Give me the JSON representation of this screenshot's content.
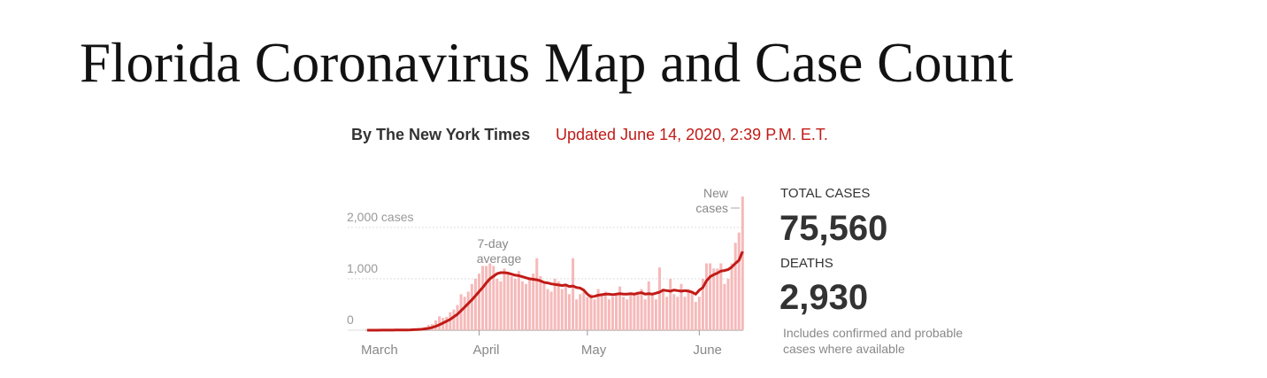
{
  "header": {
    "title": "Florida Coronavirus Map and Case Count",
    "byline": "By The New York Times",
    "updated": "Updated June 14, 2020, 2:39 P.M. E.T."
  },
  "chart_data": {
    "type": "bar",
    "categories": [
      "March",
      null,
      null,
      null,
      null,
      null,
      null,
      null,
      null,
      null,
      null,
      null,
      null,
      null,
      null,
      null,
      null,
      null,
      null,
      null,
      null,
      null,
      null,
      null,
      null,
      null,
      null,
      null,
      null,
      null,
      null,
      "April",
      null,
      null,
      null,
      null,
      null,
      null,
      null,
      null,
      null,
      null,
      null,
      null,
      null,
      null,
      null,
      null,
      null,
      null,
      null,
      null,
      null,
      null,
      null,
      null,
      null,
      null,
      null,
      null,
      null,
      "May",
      null,
      null,
      null,
      null,
      null,
      null,
      null,
      null,
      null,
      null,
      null,
      null,
      null,
      null,
      null,
      null,
      null,
      null,
      null,
      null,
      null,
      null,
      null,
      null,
      null,
      null,
      null,
      null,
      null,
      null,
      "June",
      null,
      null,
      null,
      null,
      null,
      null,
      null,
      null,
      null,
      null,
      null,
      null
    ],
    "series": [
      {
        "color": "#f6b9b9",
        "values": [
          0,
          0,
          1,
          1,
          2,
          2,
          3,
          4,
          4,
          5,
          7,
          10,
          15,
          20,
          25,
          40,
          60,
          100,
          120,
          190,
          270,
          240,
          260,
          350,
          400,
          490,
          700,
          650,
          750,
          900,
          1000,
          1100,
          1250,
          1250,
          1300,
          1250,
          1000,
          950,
          1200,
          1100,
          1050,
          1000,
          1150,
          950,
          900,
          1000,
          1100,
          1400,
          1050,
          900,
          800,
          750,
          1000,
          950,
          800,
          900,
          700,
          1400,
          600,
          700,
          750,
          650,
          700,
          600,
          800,
          700,
          750,
          600,
          650,
          700,
          850,
          650,
          600,
          700,
          700,
          750,
          800,
          600,
          950,
          700,
          600,
          1220,
          800,
          650,
          1000,
          700,
          650,
          900,
          650,
          800,
          750,
          550,
          650,
          1000,
          1300,
          1300,
          1200,
          1200,
          1300,
          900,
          1000,
          1300,
          1700,
          1900,
          2600
        ]
      },
      {
        "type": "line",
        "color": "#c11b17",
        "values": [
          0,
          0,
          0,
          0,
          1,
          1,
          2,
          2,
          3,
          3,
          4,
          5,
          7,
          10,
          13,
          18,
          25,
          37,
          53,
          75,
          105,
          140,
          175,
          210,
          260,
          310,
          380,
          450,
          520,
          590,
          670,
          750,
          830,
          920,
          1000,
          1050,
          1100,
          1120,
          1120,
          1110,
          1090,
          1070,
          1060,
          1040,
          1020,
          1000,
          990,
          980,
          960,
          930,
          920,
          900,
          890,
          880,
          870,
          880,
          850,
          860,
          830,
          820,
          780,
          700,
          650,
          660,
          680,
          690,
          700,
          700,
          690,
          700,
          710,
          700,
          700,
          710,
          700,
          720,
          730,
          700,
          710,
          700,
          720,
          740,
          780,
          770,
          760,
          780,
          770,
          760,
          770,
          760,
          740,
          700,
          780,
          830,
          960,
          1040,
          1080,
          1110,
          1150,
          1160,
          1180,
          1230,
          1300,
          1360,
          1530
        ]
      }
    ],
    "ylim": [
      0,
      2600
    ],
    "yticks": [
      0,
      {
        "value": 1000,
        "label": "1,000"
      },
      {
        "value": 2000,
        "label": "2,000 cases"
      }
    ],
    "grid": true,
    "annotations": [
      [
        "7-day",
        "average"
      ],
      [
        "New",
        "cases"
      ]
    ]
  },
  "stats": {
    "cases_label": "TOTAL CASES",
    "cases": "75,560",
    "deaths_label": "DEATHS",
    "deaths": "2,930",
    "note": [
      "Includes confirmed and probable",
      "cases where available"
    ]
  }
}
